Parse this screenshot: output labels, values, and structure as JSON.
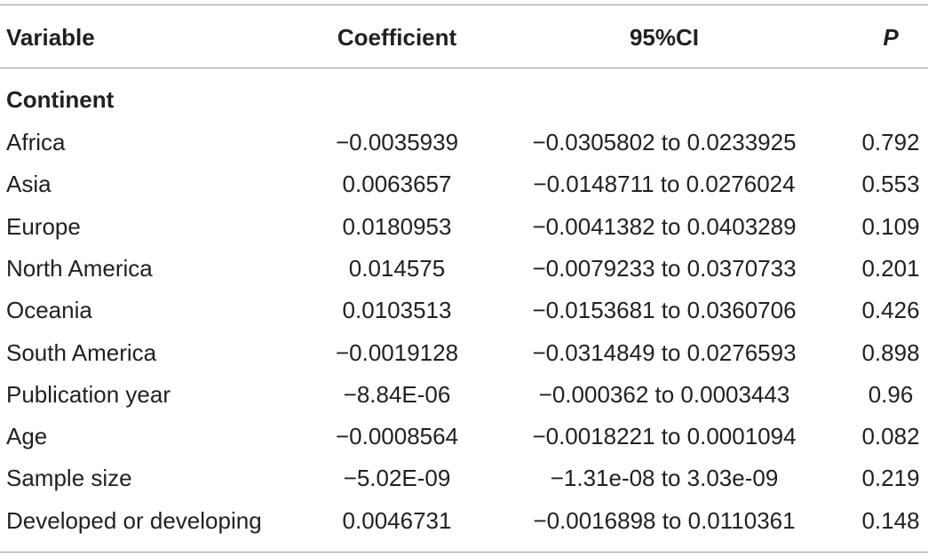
{
  "table": {
    "header": [
      "Variable",
      "Coefficient",
      "95%CI",
      "P"
    ],
    "section": "Continent",
    "rows": [
      [
        "Africa",
        "−0.0035939",
        "−0.0305802 to 0.0233925",
        "0.792"
      ],
      [
        "Asia",
        "0.0063657",
        "−0.0148711 to 0.0276024",
        "0.553"
      ],
      [
        "Europe",
        "0.0180953",
        "−0.0041382 to 0.0403289",
        "0.109"
      ],
      [
        "North America",
        "0.014575",
        "−0.0079233 to 0.0370733",
        "0.201"
      ],
      [
        "Oceania",
        "0.0103513",
        "−0.0153681 to 0.0360706",
        "0.426"
      ],
      [
        "South America",
        "−0.0019128",
        "−0.0314849 to 0.0276593",
        "0.898"
      ],
      [
        "Publication year",
        "−8.84E-06",
        "−0.000362 to 0.0003443",
        "0.96"
      ],
      [
        "Age",
        "−0.0008564",
        "−0.0018221 to 0.0001094",
        "0.082"
      ],
      [
        "Sample size",
        "−5.02E-09",
        "−1.31e-08 to 3.03e-09",
        "0.219"
      ],
      [
        "Developed or developing",
        "0.0046731",
        "−0.0016898 to 0.0110361",
        "0.148"
      ]
    ]
  }
}
